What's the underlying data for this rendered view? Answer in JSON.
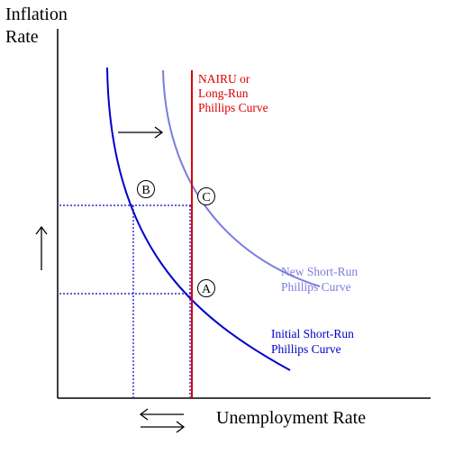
{
  "diagram": {
    "y_axis_label_line1": "Inflation",
    "y_axis_label_line2": "Rate",
    "x_axis_label": "Unemployment Rate",
    "nairu_label_line1": "NAIRU or",
    "nairu_label_line2": "Long-Run",
    "nairu_label_line3": "Phillips Curve",
    "new_srpc_label_line1": "New Short-Run",
    "new_srpc_label_line2": "Phillips Curve",
    "initial_srpc_label_line1": "Initial Short-Run",
    "initial_srpc_label_line2": "Phillips Curve",
    "point_a": "A",
    "point_b": "B",
    "point_c": "C",
    "colors": {
      "axis": "#000000",
      "initial_curve": "#0000cc",
      "new_curve": "#7b7be0",
      "nairu_line": "#dd0000",
      "guide_line": "#0000cc",
      "arrows": "#000000"
    }
  }
}
